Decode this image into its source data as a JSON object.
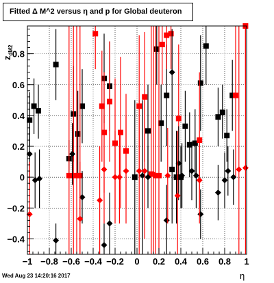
{
  "title": "Fitted Δ M^2 versus η and p for Global deuteron",
  "timestamp": "Wed Aug 23 14:20:16 2017",
  "xlabel": "η",
  "ylabel": "z",
  "ylabel_sub": "dM2",
  "chart_data": {
    "type": "scatter",
    "xlim": [
      -1,
      1
    ],
    "ylim": [
      -0.5,
      0.98
    ],
    "grid": true,
    "xticks": [
      -1,
      -0.8,
      -0.6,
      -0.4,
      -0.2,
      0,
      0.2,
      0.4,
      0.6,
      0.8,
      1
    ],
    "xtick_labels": [
      "−1",
      "−0.8",
      "−0.6",
      "−0.4",
      "−0.2",
      "0",
      "0.2",
      "0.4",
      "0.6",
      "0.8",
      "1"
    ],
    "yticks": [
      -0.4,
      -0.2,
      0,
      0.2,
      0.4,
      0.6,
      0.8
    ],
    "ytick_labels": [
      "−0.4",
      "−0.2",
      "0",
      "0.2",
      "0.4",
      "0.6",
      "0.8"
    ],
    "series": [
      {
        "marker": "square",
        "color": "#000000",
        "points": [
          {
            "x": -0.98,
            "y": 0.37,
            "lo": 0.2,
            "hi": 0.55
          },
          {
            "x": -0.94,
            "y": 0.46,
            "lo": 0.28,
            "hi": 0.64
          },
          {
            "x": -0.9,
            "y": 0.43,
            "lo": 0.25,
            "hi": 0.6
          },
          {
            "x": -0.74,
            "y": 0.73,
            "lo": 0.5,
            "hi": 0.96
          },
          {
            "x": -0.62,
            "y": 0.12,
            "lo": 0.0,
            "hi": 0.24
          },
          {
            "x": -0.58,
            "y": 0.41,
            "lo": 0.1,
            "hi": 0.72
          },
          {
            "x": -0.54,
            "y": 0.28,
            "lo": 0.0,
            "hi": 0.56
          },
          {
            "x": -0.5,
            "y": 0.46,
            "lo": 0.22,
            "hi": 0.7
          },
          {
            "x": -0.3,
            "y": 0.64,
            "lo": 0.35,
            "hi": 0.93
          },
          {
            "x": -0.25,
            "y": 0.59,
            "lo": 0.3,
            "hi": 0.88
          },
          {
            "x": -0.02,
            "y": 0.0,
            "lo": -0.5,
            "hi": 0.5
          },
          {
            "x": 0.1,
            "y": 0.3,
            "lo": 0.0,
            "hi": 0.6
          },
          {
            "x": 0.18,
            "y": 0.83,
            "lo": 0.6,
            "hi": 0.98
          },
          {
            "x": 0.22,
            "y": 0.35,
            "lo": 0.1,
            "hi": 0.6
          },
          {
            "x": 0.27,
            "y": 0.53,
            "lo": 0.2,
            "hi": 0.86
          },
          {
            "x": 0.32,
            "y": 0.05,
            "lo": -0.3,
            "hi": 0.4
          },
          {
            "x": 0.36,
            "y": 0.0,
            "lo": -0.3,
            "hi": 0.3
          },
          {
            "x": 0.4,
            "y": 0.0,
            "lo": -0.2,
            "hi": 0.2
          },
          {
            "x": 0.44,
            "y": 0.33,
            "lo": 0.1,
            "hi": 0.56
          },
          {
            "x": 0.48,
            "y": 0.21,
            "lo": 0.0,
            "hi": 0.42
          },
          {
            "x": 0.53,
            "y": 0.22,
            "lo": 0.0,
            "hi": 0.44
          },
          {
            "x": 0.58,
            "y": 0.61,
            "lo": 0.3,
            "hi": 0.92
          },
          {
            "x": 0.63,
            "y": 0.85,
            "lo": 0.6,
            "hi": 0.98
          },
          {
            "x": 0.74,
            "y": 0.39,
            "lo": 0.2,
            "hi": 0.58
          },
          {
            "x": 0.78,
            "y": 0.42,
            "lo": 0.25,
            "hi": 0.6
          },
          {
            "x": 0.82,
            "y": 0.27,
            "lo": 0.1,
            "hi": 0.44
          },
          {
            "x": 0.87,
            "y": 0.53,
            "lo": 0.3,
            "hi": 0.76
          }
        ]
      },
      {
        "marker": "square",
        "color": "#ff0000",
        "points": [
          {
            "x": -0.62,
            "y": 0.01,
            "lo": -0.5,
            "hi": 0.98
          },
          {
            "x": -0.58,
            "y": 0.01,
            "lo": -0.5,
            "hi": 0.98
          },
          {
            "x": -0.55,
            "y": 0.01,
            "lo": -0.5,
            "hi": 0.98
          },
          {
            "x": -0.52,
            "y": 0.01,
            "lo": -0.5,
            "hi": 0.98
          },
          {
            "x": -0.38,
            "y": 0.93,
            "lo": 0.7,
            "hi": 0.98
          },
          {
            "x": -0.32,
            "y": 0.46,
            "lo": 0.1,
            "hi": 0.82
          },
          {
            "x": -0.3,
            "y": 0.29,
            "lo": -0.1,
            "hi": 0.68
          },
          {
            "x": -0.25,
            "y": 0.49,
            "lo": 0.1,
            "hi": 0.88
          },
          {
            "x": -0.2,
            "y": 0.22,
            "lo": -0.2,
            "hi": 0.64
          },
          {
            "x": -0.15,
            "y": 0.29,
            "lo": -0.2,
            "hi": 0.78
          },
          {
            "x": -0.1,
            "y": 0.17,
            "lo": -0.2,
            "hi": 0.54
          },
          {
            "x": 0.02,
            "y": 0.46,
            "lo": 0.0,
            "hi": 0.92
          },
          {
            "x": 0.07,
            "y": 0.52,
            "lo": 0.1,
            "hi": 0.94
          },
          {
            "x": 0.13,
            "y": 0.02,
            "lo": -0.5,
            "hi": 0.98
          },
          {
            "x": 0.17,
            "y": 0.01,
            "lo": -0.5,
            "hi": 0.98
          },
          {
            "x": 0.2,
            "y": 0.01,
            "lo": -0.5,
            "hi": 0.98
          },
          {
            "x": 0.23,
            "y": 0.86,
            "lo": 0.6,
            "hi": 0.98
          },
          {
            "x": 0.27,
            "y": 0.92,
            "lo": 0.7,
            "hi": 0.98
          },
          {
            "x": 0.31,
            "y": 0.93,
            "lo": 0.7,
            "hi": 0.98
          },
          {
            "x": 0.38,
            "y": 0.38,
            "lo": -0.1,
            "hi": 0.86
          },
          {
            "x": 0.57,
            "y": 0.24,
            "lo": -0.2,
            "hi": 0.68
          },
          {
            "x": 0.9,
            "y": 0.53,
            "lo": 0.0,
            "hi": 0.98
          },
          {
            "x": 0.99,
            "y": 0.98,
            "lo": 0.6,
            "hi": 0.98
          }
        ]
      },
      {
        "marker": "diamond",
        "color": "#000000",
        "points": [
          {
            "x": -0.98,
            "y": 0.15,
            "lo": -0.05,
            "hi": 0.35
          },
          {
            "x": -0.93,
            "y": -0.02,
            "lo": -0.2,
            "hi": 0.16
          },
          {
            "x": -0.89,
            "y": -0.01,
            "lo": -0.2,
            "hi": 0.18
          },
          {
            "x": -0.74,
            "y": -0.41,
            "lo": -0.5,
            "hi": -0.3
          },
          {
            "x": -0.59,
            "y": 0.15,
            "lo": -0.05,
            "hi": 0.35
          },
          {
            "x": -0.5,
            "y": -0.13,
            "lo": -0.3,
            "hi": 0.04
          },
          {
            "x": -0.3,
            "y": -0.44,
            "lo": -0.5,
            "hi": -0.3
          },
          {
            "x": -0.25,
            "y": -0.3,
            "lo": -0.5,
            "hi": -0.1
          },
          {
            "x": 0.05,
            "y": 0.01,
            "lo": -0.5,
            "hi": 0.5
          },
          {
            "x": 0.1,
            "y": 0.0,
            "lo": -0.2,
            "hi": 0.2
          },
          {
            "x": 0.27,
            "y": -0.28,
            "lo": -0.5,
            "hi": -0.05
          },
          {
            "x": 0.32,
            "y": 0.68,
            "lo": 0.4,
            "hi": 0.96
          },
          {
            "x": 0.38,
            "y": 0.09,
            "lo": -0.15,
            "hi": 0.33
          },
          {
            "x": 0.41,
            "y": 0.01,
            "lo": -0.2,
            "hi": 0.22
          },
          {
            "x": 0.5,
            "y": 0.04,
            "lo": -0.15,
            "hi": 0.23
          },
          {
            "x": 0.54,
            "y": 0.01,
            "lo": -0.2,
            "hi": 0.22
          },
          {
            "x": 0.58,
            "y": -0.24,
            "lo": -0.4,
            "hi": -0.08
          },
          {
            "x": 0.74,
            "y": -0.1,
            "lo": -0.28,
            "hi": 0.08
          },
          {
            "x": 0.8,
            "y": -0.02,
            "lo": -0.2,
            "hi": 0.16
          },
          {
            "x": 0.83,
            "y": 0.04,
            "lo": -0.12,
            "hi": 0.2
          },
          {
            "x": 0.88,
            "y": 0.0,
            "lo": -0.18,
            "hi": 0.18
          }
        ]
      },
      {
        "marker": "diamond",
        "color": "#ff0000",
        "points": [
          {
            "x": -0.98,
            "y": -0.24,
            "lo": -0.5,
            "hi": 0.1
          },
          {
            "x": -0.52,
            "y": -0.27,
            "lo": -0.5,
            "hi": 0.1
          },
          {
            "x": -0.34,
            "y": -0.15,
            "lo": -0.5,
            "hi": 0.2
          },
          {
            "x": -0.3,
            "y": 0.05,
            "lo": -0.3,
            "hi": 0.4
          },
          {
            "x": -0.2,
            "y": 0.0,
            "lo": -0.3,
            "hi": 0.3
          },
          {
            "x": -0.16,
            "y": 0.0,
            "lo": -0.3,
            "hi": 0.3
          },
          {
            "x": -0.1,
            "y": 0.04,
            "lo": -0.3,
            "hi": 0.4
          },
          {
            "x": 0.02,
            "y": 0.04,
            "lo": -0.5,
            "hi": 0.5
          },
          {
            "x": 0.07,
            "y": 0.04,
            "lo": -0.4,
            "hi": 0.5
          },
          {
            "x": 0.15,
            "y": 0.02,
            "lo": -0.5,
            "hi": 0.98
          },
          {
            "x": 0.28,
            "y": 0.01,
            "lo": -0.3,
            "hi": 0.32
          },
          {
            "x": 0.37,
            "y": -0.12,
            "lo": -0.5,
            "hi": 0.3
          },
          {
            "x": 0.57,
            "y": -0.02,
            "lo": -0.3,
            "hi": 0.26
          },
          {
            "x": 0.93,
            "y": 0.05,
            "lo": -0.5,
            "hi": 0.98
          },
          {
            "x": 0.99,
            "y": 0.06,
            "lo": -0.5,
            "hi": 0.98
          }
        ]
      }
    ]
  }
}
